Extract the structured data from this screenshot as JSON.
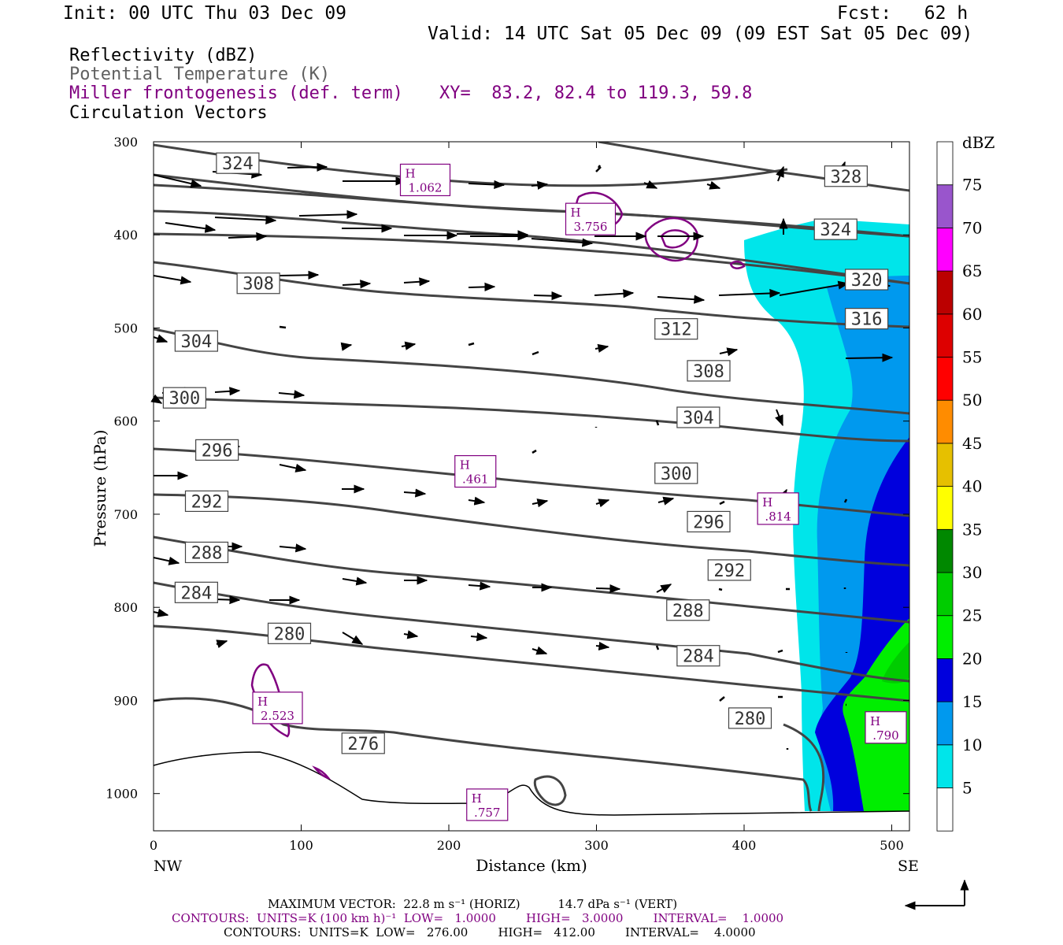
{
  "header": {
    "init": "Init: 00 UTC Thu 03 Dec 09",
    "fcst": "Fcst:   62 h",
    "valid": "Valid: 14 UTC Sat 05 Dec 09 (09 EST Sat 05 Dec 09)"
  },
  "legend": {
    "line1": "Reflectivity (dBZ)",
    "line2": "Potential Temperature (K)",
    "line3": "Miller frontogenesis (def. term)",
    "line4": "Circulation Vectors",
    "xy": "XY=  83.2, 82.4 to 119.3, 59.8",
    "colors": {
      "line1": "#000000",
      "line2": "#606060",
      "line3": "#800080",
      "line4": "#000000"
    }
  },
  "chart_data": {
    "type": "cross-section",
    "xlabel": "Distance (km)",
    "ylabel": "Pressure (hPa)",
    "x_ticks": [
      "0",
      "100",
      "200",
      "300",
      "400",
      "500"
    ],
    "y_ticks": [
      "300",
      "400",
      "500",
      "600",
      "700",
      "800",
      "900",
      "1000"
    ],
    "xlim": [
      0,
      512
    ],
    "ylim": [
      300,
      1040
    ],
    "x_end_left": "NW",
    "x_end_right": "SE",
    "colorbar": {
      "unit": "dBZ",
      "levels": [
        "5",
        "10",
        "15",
        "20",
        "25",
        "30",
        "35",
        "40",
        "45",
        "50",
        "55",
        "60",
        "65",
        "70",
        "75"
      ],
      "colors": [
        "#ffffff",
        "#00e5ea",
        "#0099ee",
        "#0000dd",
        "#00ee00",
        "#00cc00",
        "#008800",
        "#ffff00",
        "#e6c000",
        "#ff8c00",
        "#ff0000",
        "#dd0000",
        "#bb0000",
        "#ff00ff",
        "#9955cc",
        "#ffffff"
      ]
    },
    "theta_labels": [
      {
        "v": "324",
        "x": 57,
        "p": 323
      },
      {
        "v": "308",
        "x": 71,
        "p": 452
      },
      {
        "v": "304",
        "x": 29,
        "p": 514
      },
      {
        "v": "300",
        "x": 21,
        "p": 575
      },
      {
        "v": "296",
        "x": 43,
        "p": 631
      },
      {
        "v": "292",
        "x": 36,
        "p": 686
      },
      {
        "v": "288",
        "x": 36,
        "p": 741
      },
      {
        "v": "284",
        "x": 29,
        "p": 784
      },
      {
        "v": "280",
        "x": 92,
        "p": 828
      },
      {
        "v": "276",
        "x": 142,
        "p": 946
      },
      {
        "v": "328",
        "x": 469,
        "p": 337
      },
      {
        "v": "324",
        "x": 462,
        "p": 394
      },
      {
        "v": "320",
        "x": 483,
        "p": 448
      },
      {
        "v": "316",
        "x": 483,
        "p": 490
      },
      {
        "v": "312",
        "x": 354,
        "p": 501
      },
      {
        "v": "308",
        "x": 376,
        "p": 546
      },
      {
        "v": "304",
        "x": 369,
        "p": 596
      },
      {
        "v": "300",
        "x": 354,
        "p": 656
      },
      {
        "v": "296",
        "x": 376,
        "p": 708
      },
      {
        "v": "292",
        "x": 390,
        "p": 760
      },
      {
        "v": "288",
        "x": 362,
        "p": 803
      },
      {
        "v": "284",
        "x": 369,
        "p": 852
      },
      {
        "v": "280",
        "x": 404,
        "p": 919
      }
    ],
    "fronto_highs": [
      {
        "v": "1.062",
        "x": 184,
        "p": 341
      },
      {
        "v": "3.756",
        "x": 296,
        "p": 383
      },
      {
        "v": ".461",
        "x": 218,
        "p": 654
      },
      {
        "v": ".814",
        "x": 423,
        "p": 694
      },
      {
        "v": "2.523",
        "x": 84,
        "p": 908
      },
      {
        "v": ".757",
        "x": 226,
        "p": 1012
      },
      {
        "v": ".790",
        "x": 496,
        "p": 929
      }
    ],
    "contour_min_theta": 276,
    "contour_max_theta": 412,
    "contour_interval_theta": 4
  },
  "footer": {
    "max_vector": "MAXIMUM VECTOR:  22.8 m s⁻¹ (HORIZ)          14.7 dPa s⁻¹ (VERT)",
    "contours1": "CONTOURS:  UNITS=K (100 km h)⁻¹  LOW=   1.0000        HIGH=   3.0000        INTERVAL=    1.0000",
    "contours2": "CONTOURS:  UNITS=K  LOW=   276.00        HIGH=   412.00        INTERVAL=    4.0000"
  }
}
